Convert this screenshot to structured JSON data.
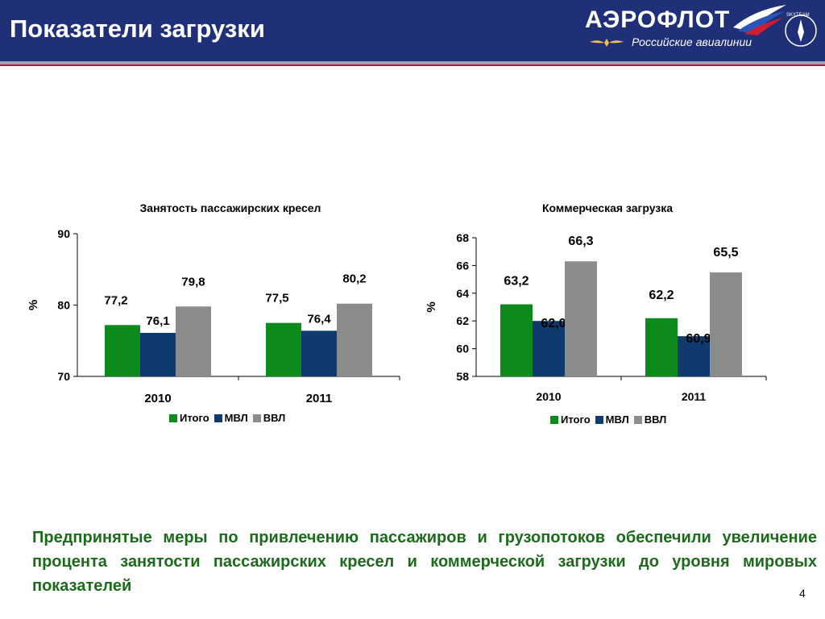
{
  "header": {
    "title": "Показатели загрузки",
    "logo_text": "АЭРОФЛОТ",
    "logo_subtitle": "Российские авиалинии",
    "logo_alliance": "SKYTEAM"
  },
  "colors": {
    "header_bg": "#1f2f78",
    "itogo": "#0c8a1c",
    "mvl": "#0e3a6e",
    "vvl": "#8c8c8c",
    "text_green": "#1b6b1b"
  },
  "chart_data": [
    {
      "type": "bar",
      "title": "Занятость пассажирских кресел",
      "ylabel": "%",
      "xlabel": "",
      "ylim": [
        70,
        90
      ],
      "yticks": [
        "70",
        "80",
        "90"
      ],
      "categories": [
        "2010",
        "2011"
      ],
      "series": [
        {
          "name": "Итого",
          "values": [
            77.2,
            77.5
          ],
          "labels": [
            "77,2",
            "77,5"
          ]
        },
        {
          "name": "МВЛ",
          "values": [
            76.1,
            76.4
          ],
          "labels": [
            "76,1",
            "76,4"
          ]
        },
        {
          "name": "ВВЛ",
          "values": [
            79.8,
            80.2
          ],
          "labels": [
            "79,8",
            "80,2"
          ]
        }
      ],
      "legend": "bottom",
      "grid": false
    },
    {
      "type": "bar",
      "title": "Коммерческая загрузка",
      "ylabel": "%",
      "xlabel": "",
      "ylim": [
        58,
        68
      ],
      "yticks": [
        "58",
        "60",
        "62",
        "64",
        "66",
        "68"
      ],
      "categories": [
        "2010",
        "2011"
      ],
      "series": [
        {
          "name": "Итого",
          "values": [
            63.2,
            62.2
          ],
          "labels": [
            "63,2",
            "62,2"
          ]
        },
        {
          "name": "МВЛ",
          "values": [
            62.0,
            60.9
          ],
          "labels": [
            "62,0",
            "60,9"
          ]
        },
        {
          "name": "ВВЛ",
          "values": [
            66.3,
            65.5
          ],
          "labels": [
            "66,3",
            "65,5"
          ]
        }
      ],
      "legend": "bottom",
      "grid": false
    }
  ],
  "legend_labels": [
    "Итого",
    "МВЛ",
    "ВВЛ"
  ],
  "footer": {
    "text": "Предпринятые меры по привлечению пассажиров и грузопотоков обеспечили увеличение процента занятости пассажирских кресел и коммерческой загрузки до уровня мировых показателей",
    "page_number": "4"
  }
}
